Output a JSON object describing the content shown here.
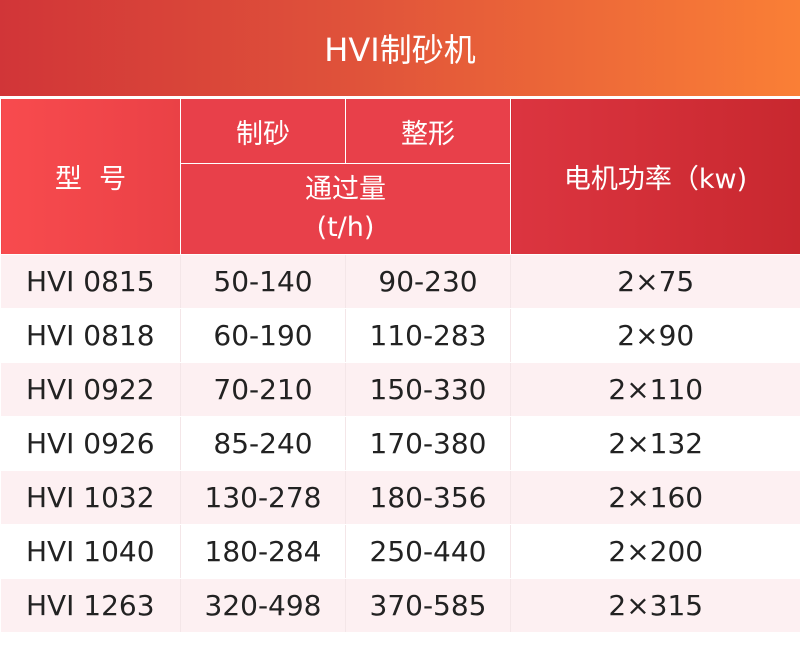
{
  "title": "HVI制砂机",
  "headers": {
    "model": "型  号",
    "sand_making": "制砂",
    "shaping": "整形",
    "throughput": "通过量",
    "throughput_unit": "(t/h)",
    "power": "电机功率（kw)"
  },
  "rows": [
    {
      "model": "HVI 0815",
      "sand": "50-140",
      "shape": "90-230",
      "power": "2×75"
    },
    {
      "model": "HVI 0818",
      "sand": "60-190",
      "shape": "110-283",
      "power": "2×90"
    },
    {
      "model": "HVI 0922",
      "sand": "70-210",
      "shape": "150-330",
      "power": "2×110"
    },
    {
      "model": "HVI 0926",
      "sand": "85-240",
      "shape": "170-380",
      "power": "2×132"
    },
    {
      "model": "HVI 1032",
      "sand": "130-278",
      "shape": "180-356",
      "power": "2×160"
    },
    {
      "model": "HVI 1040",
      "sand": "180-284",
      "shape": "250-440",
      "power": "2×200"
    },
    {
      "model": "HVI 1263",
      "sand": "320-498",
      "shape": "370-585",
      "power": "2×315"
    }
  ]
}
